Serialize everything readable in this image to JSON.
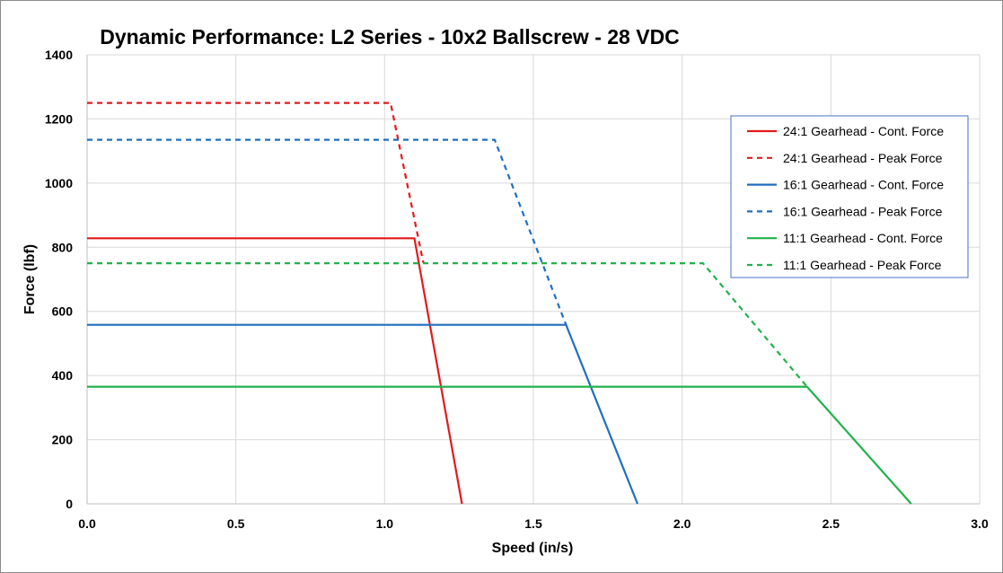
{
  "chart_data": {
    "type": "line",
    "title": "Dynamic Performance: L2 Series - 10x2 Ballscrew - 28 VDC",
    "xlabel": "Speed (in/s)",
    "ylabel": "Force (lbf)",
    "xlim": [
      0,
      3.0
    ],
    "ylim": [
      0,
      1400
    ],
    "x_ticks": [
      "0.0",
      "0.5",
      "1.0",
      "1.5",
      "2.0",
      "2.5",
      "3.0"
    ],
    "y_ticks": [
      "0",
      "200",
      "400",
      "600",
      "800",
      "1000",
      "1200",
      "1400"
    ],
    "grid": true,
    "legend_position": "top-right",
    "series": [
      {
        "name": "24:1 Gearhead - Cont. Force",
        "color": "#e31a1c",
        "dash": "solid",
        "points": [
          [
            0,
            828
          ],
          [
            1.1,
            828
          ],
          [
            1.26,
            0
          ]
        ]
      },
      {
        "name": "24:1 Gearhead - Peak Force",
        "color": "#e31a1c",
        "dash": "dashed",
        "points": [
          [
            0,
            1250
          ],
          [
            1.02,
            1250
          ],
          [
            1.13,
            752
          ]
        ]
      },
      {
        "name": "16:1 Gearhead - Cont. Force",
        "color": "#1f6fbf",
        "dash": "solid",
        "points": [
          [
            0,
            558
          ],
          [
            1.61,
            558
          ],
          [
            1.85,
            0
          ]
        ]
      },
      {
        "name": "16:1 Gearhead - Peak Force",
        "color": "#1f6fbf",
        "dash": "dashed",
        "points": [
          [
            0,
            1135
          ],
          [
            1.37,
            1135
          ],
          [
            1.61,
            558
          ]
        ]
      },
      {
        "name": "11:1 Gearhead - Cont. Force",
        "color": "#21b24b",
        "dash": "solid",
        "points": [
          [
            0,
            365
          ],
          [
            2.42,
            365
          ],
          [
            2.77,
            0
          ]
        ]
      },
      {
        "name": "11:1 Gearhead - Peak Force",
        "color": "#21b24b",
        "dash": "dashed",
        "points": [
          [
            0,
            750
          ],
          [
            2.07,
            750
          ],
          [
            2.42,
            365
          ]
        ]
      }
    ]
  }
}
